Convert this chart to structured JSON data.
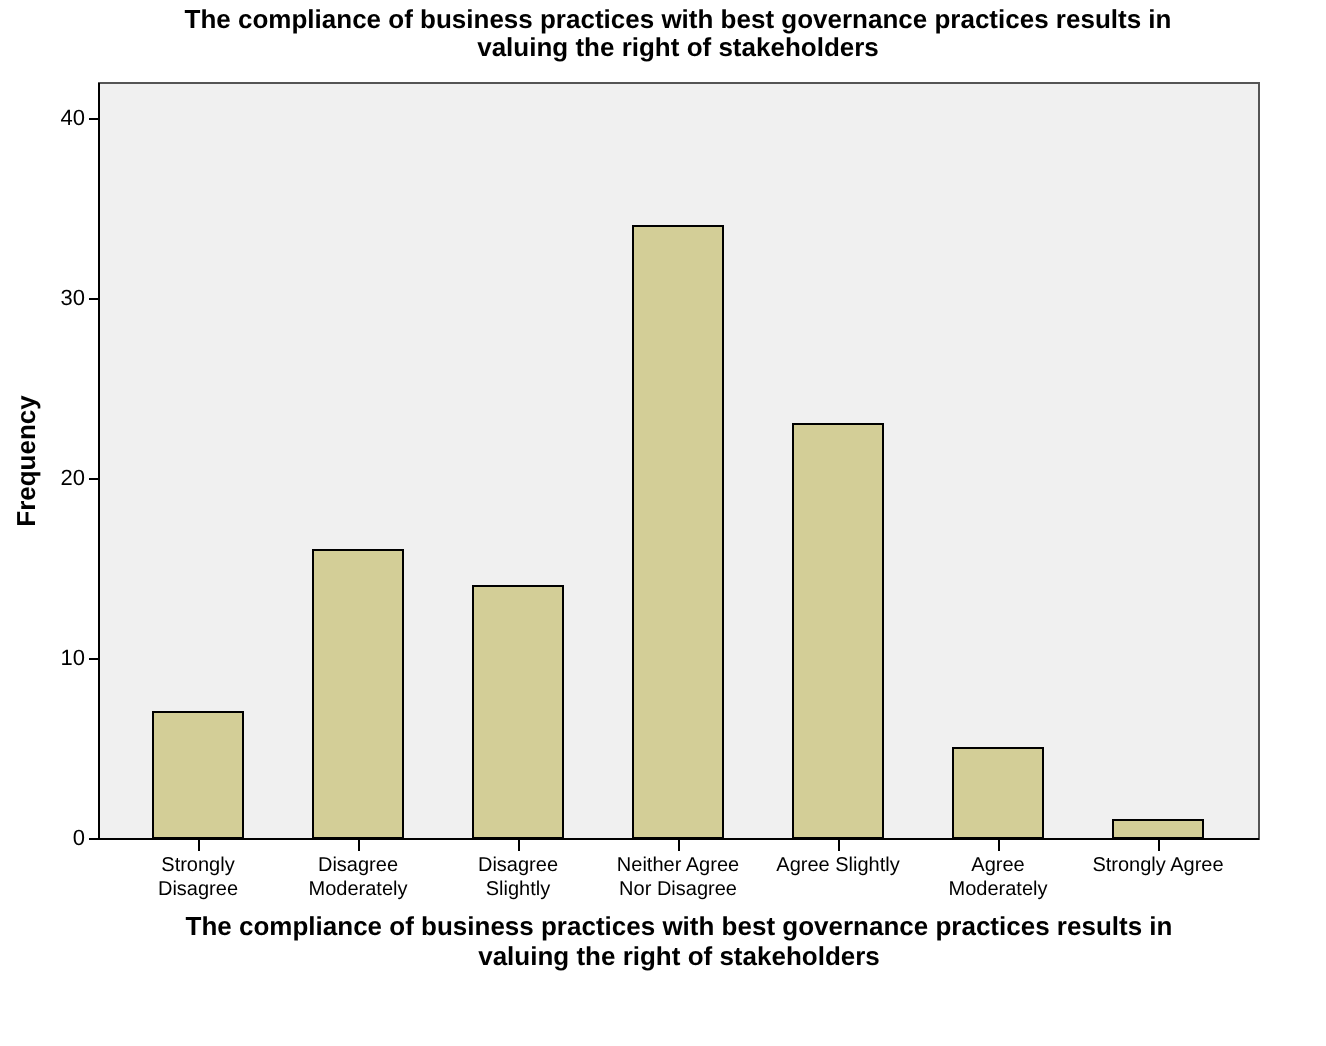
{
  "chart_data": {
    "type": "bar",
    "title": "The compliance of business practices with best governance practices results in valuing the right of stakeholders",
    "xlabel": "The compliance of business practices with best governance practices results in valuing the right of stakeholders",
    "ylabel": "Frequency",
    "categories": [
      "Strongly\nDisagree",
      "Disagree\nModerately",
      "Disagree\nSlightly",
      "Neither Agree\nNor Disagree",
      "Agree Slightly",
      "Agree\nModerately",
      "Strongly Agree"
    ],
    "values": [
      7,
      16,
      14,
      34,
      23,
      5,
      1
    ],
    "color": "#d3ce97",
    "ylim": [
      0,
      42
    ],
    "yticks": [
      0,
      10,
      20,
      30,
      40
    ],
    "grid": false
  }
}
